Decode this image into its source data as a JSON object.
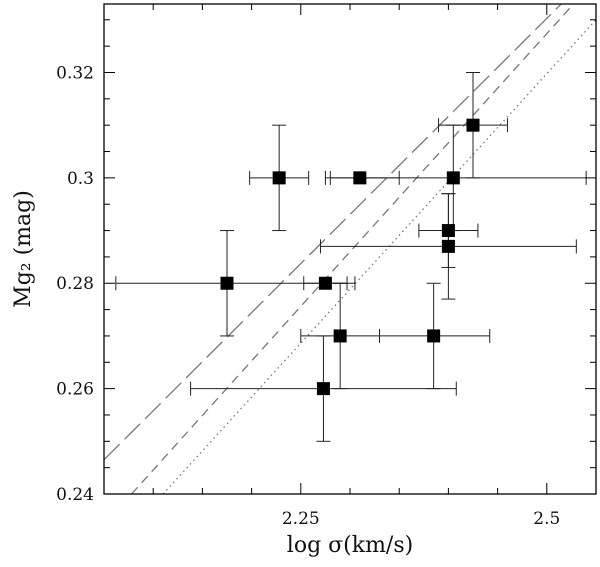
{
  "chart_data": {
    "type": "scatter",
    "title": "",
    "xlabel": "log σ(km/s)",
    "ylabel": "Mg₂ (mag)",
    "xlim": [
      2.05,
      2.55
    ],
    "ylim": [
      0.24,
      0.333
    ],
    "x_ticks": [
      {
        "value": 2.25,
        "label": "2.25"
      },
      {
        "value": 2.5,
        "label": "2.5"
      }
    ],
    "y_ticks": [
      {
        "value": 0.24,
        "label": "0.24"
      },
      {
        "value": 0.26,
        "label": "0.26"
      },
      {
        "value": 0.28,
        "label": "0.28"
      },
      {
        "value": 0.3,
        "label": "0.3"
      },
      {
        "value": 0.32,
        "label": "0.32"
      }
    ],
    "grid": false,
    "points": [
      {
        "x": 2.228,
        "y": 0.3,
        "xerr": [
          0.03,
          0.03
        ],
        "yerr": [
          0.01,
          0.01
        ]
      },
      {
        "x": 2.31,
        "y": 0.3,
        "xerr": [
          0.035,
          0.04
        ],
        "yerr": [
          0,
          0
        ]
      },
      {
        "x": 2.405,
        "y": 0.3,
        "xerr": [
          0.125,
          0.135
        ],
        "yerr": [
          0.01,
          0.01
        ]
      },
      {
        "x": 2.425,
        "y": 0.31,
        "xerr": [
          0.035,
          0.035
        ],
        "yerr": [
          0.01,
          0.01
        ]
      },
      {
        "x": 2.4,
        "y": 0.29,
        "xerr": [
          0.03,
          0.03
        ],
        "yerr": [
          0.007,
          0.007
        ]
      },
      {
        "x": 2.4,
        "y": 0.287,
        "xerr": [
          0.13,
          0.13
        ],
        "yerr": [
          0.01,
          0.01
        ]
      },
      {
        "x": 2.175,
        "y": 0.28,
        "xerr": [
          0.113,
          0.13
        ],
        "yerr": [
          0.01,
          0.01
        ]
      },
      {
        "x": 2.275,
        "y": 0.28,
        "xerr": [
          0.022,
          0.022
        ],
        "yerr": [
          0,
          0
        ]
      },
      {
        "x": 2.29,
        "y": 0.27,
        "xerr": [
          0.04,
          0.04
        ],
        "yerr": [
          0.01,
          0.01
        ]
      },
      {
        "x": 2.385,
        "y": 0.27,
        "xerr": [
          0.055,
          0.057
        ],
        "yerr": [
          0.01,
          0.01
        ]
      },
      {
        "x": 2.273,
        "y": 0.26,
        "xerr": [
          0.135,
          0.135
        ],
        "yerr": [
          0.01,
          0.01
        ]
      }
    ],
    "fit_lines": [
      {
        "style": "long-dash",
        "x1": 2.05,
        "y1": 0.2465,
        "x2": 2.52,
        "y2": 0.334
      },
      {
        "style": "short-dash",
        "x1": 2.078,
        "y1": 0.24,
        "x2": 2.532,
        "y2": 0.334
      },
      {
        "style": "dotted",
        "x1": 2.11,
        "y1": 0.24,
        "x2": 2.55,
        "y2": 0.33
      }
    ],
    "colors": {
      "marker": "#000000",
      "errorbar": "#222222",
      "fit_lines": "#777777",
      "axes": "#000000"
    }
  }
}
